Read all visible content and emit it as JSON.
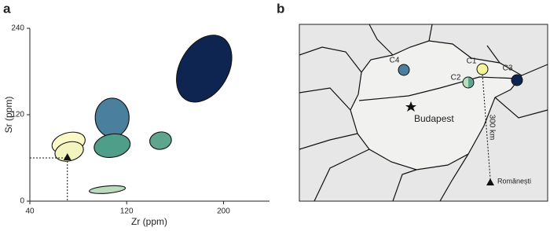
{
  "chart_data": {
    "type": "ellipse",
    "panel_label": "a",
    "xlabel": "Zr (ppm)",
    "ylabel": "Sr (ppm)",
    "xlim": [
      40,
      238
    ],
    "ylim": [
      0,
      240
    ],
    "xticks": [
      40,
      120,
      200
    ],
    "yticks": [
      0,
      120,
      240
    ],
    "ellipses": [
      {
        "color": "#0d2550",
        "x": 184,
        "y": 184,
        "rx": 20,
        "ry": 50,
        "angle": 30
      },
      {
        "color": "#4a7f9d",
        "x": 108,
        "y": 116,
        "rx": 14,
        "ry": 27,
        "angle": 0
      },
      {
        "color": "#4f9e8a",
        "x": 108,
        "y": 77,
        "rx": 15,
        "ry": 16,
        "angle": -10
      },
      {
        "color": "#5fa58e",
        "x": 148,
        "y": 84,
        "rx": 9,
        "ry": 12,
        "angle": -10
      },
      {
        "color": "#fafac8",
        "x": 72,
        "y": 81,
        "rx": 14,
        "ry": 14,
        "angle": -15
      },
      {
        "color": "#f3f5c0",
        "x": 72.5,
        "y": 69,
        "rx": 12,
        "ry": 13,
        "angle": -15
      },
      {
        "color": "#b9dcbc",
        "x": 104,
        "y": 16,
        "rx": 15,
        "ry": 5,
        "angle": -5
      }
    ],
    "point": {
      "x": 71,
      "y": 60
    }
  },
  "map": {
    "panel_label": "b",
    "city": "Budapest",
    "scale": "300 km",
    "locality": "Românești",
    "sites": [
      {
        "label": "C1",
        "color": "#f7f59a"
      },
      {
        "label": "C2",
        "color": "#b9dcbc",
        "color2": "#5fa58e"
      },
      {
        "label": "C3",
        "color": "#0d2550"
      },
      {
        "label": "C4",
        "color": "#4a7f9d"
      }
    ]
  }
}
